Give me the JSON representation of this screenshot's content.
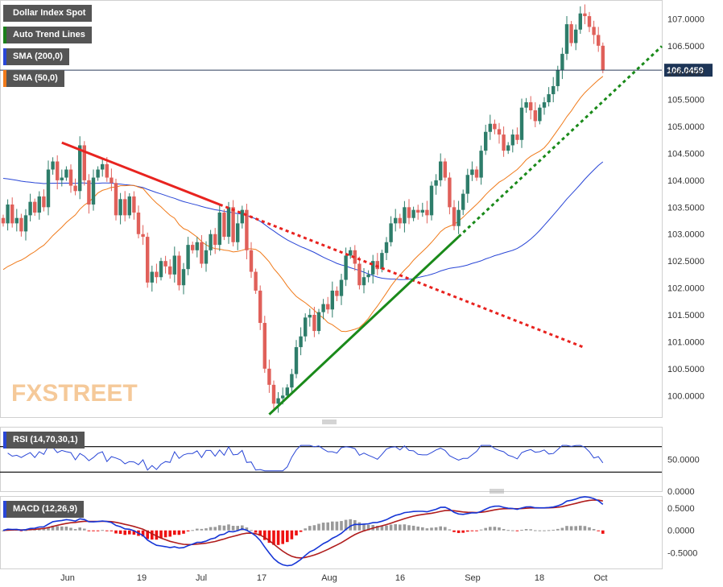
{
  "watermark": "FXSTREET",
  "legend": [
    {
      "label": "Dollar Index Spot",
      "color": "#555555"
    },
    {
      "label": "Auto Trend Lines",
      "color": "#1a7f1a"
    },
    {
      "label": "SMA (200,0)",
      "color": "#2946d6"
    },
    {
      "label": "SMA (50,0)",
      "color": "#f07a1a"
    }
  ],
  "rsi_label": "RSI (14,70,30,1)",
  "macd_label": "MACD (12,26,9)",
  "last_price": "106.0459",
  "colors": {
    "up": "#2e7d6a",
    "down": "#e0605a",
    "sma200": "#2946d6",
    "sma50": "#f07a1a",
    "trend_down": "#e8231f",
    "trend_up": "#1a8a1a",
    "rsi": "#2946d6",
    "macd": "#1535d6",
    "signal": "#b01c1c"
  },
  "chart_data": [
    {
      "type": "candlestick",
      "title": "Dollar Index Spot",
      "x_ticks": [
        "Jun",
        "19",
        "Jul",
        "17",
        "Aug",
        "16",
        "Sep",
        "18",
        "Oct"
      ],
      "y_ticks": [
        "100.0000",
        "100.5000",
        "101.0000",
        "101.5000",
        "102.0000",
        "102.5000",
        "103.0000",
        "103.5000",
        "104.0000",
        "104.5000",
        "105.0000",
        "105.5000",
        "106.0000",
        "106.5000",
        "107.0000"
      ],
      "ylim": [
        99.6,
        107.35
      ],
      "closes": [
        103.2,
        103.55,
        103.2,
        103.3,
        103.05,
        103.35,
        103.6,
        103.4,
        103.7,
        103.5,
        104.2,
        104.35,
        104.0,
        104.05,
        104.2,
        103.9,
        103.8,
        104.65,
        104.0,
        103.55,
        104.05,
        104.2,
        104.3,
        104.05,
        103.95,
        103.35,
        103.65,
        103.35,
        103.7,
        103.4,
        103.0,
        102.95,
        102.1,
        102.3,
        102.2,
        102.5,
        102.4,
        102.25,
        102.6,
        102.05,
        102.35,
        102.8,
        102.7,
        102.85,
        102.45,
        102.7,
        103.0,
        102.8,
        103.4,
        102.95,
        103.5,
        102.85,
        103.2,
        103.45,
        102.7,
        102.3,
        101.95,
        101.35,
        100.5,
        100.2,
        99.85,
        99.95,
        100.0,
        100.15,
        100.4,
        100.9,
        101.1,
        101.45,
        101.5,
        101.2,
        101.55,
        101.7,
        101.6,
        101.95,
        101.85,
        102.15,
        102.6,
        102.7,
        102.45,
        102.05,
        102.2,
        102.25,
        102.5,
        102.35,
        102.65,
        102.85,
        103.2,
        103.3,
        103.2,
        103.5,
        103.3,
        103.45,
        103.4,
        103.45,
        103.35,
        103.9,
        104.0,
        104.35,
        104.05,
        103.5,
        103.15,
        103.45,
        103.75,
        104.1,
        104.2,
        104.05,
        104.55,
        104.9,
        105.05,
        104.95,
        104.85,
        104.55,
        104.65,
        104.85,
        104.75,
        105.35,
        105.45,
        105.3,
        105.1,
        105.35,
        105.45,
        105.6,
        105.75,
        106.05,
        106.35,
        106.9,
        106.55,
        106.8,
        107.1,
        107.05,
        106.85,
        106.7,
        106.5,
        106.05
      ]
    },
    {
      "type": "line",
      "title": "RSI (14,70,30,1)",
      "y_ticks": [
        "50.0000",
        "0.0000"
      ],
      "ylim": [
        0,
        100
      ],
      "levels": [
        70,
        30
      ]
    },
    {
      "type": "line",
      "title": "MACD (12,26,9)",
      "y_ticks": [
        "0.5000",
        "0.0000",
        "-0.5000"
      ],
      "ylim": [
        -0.85,
        0.75
      ]
    }
  ]
}
